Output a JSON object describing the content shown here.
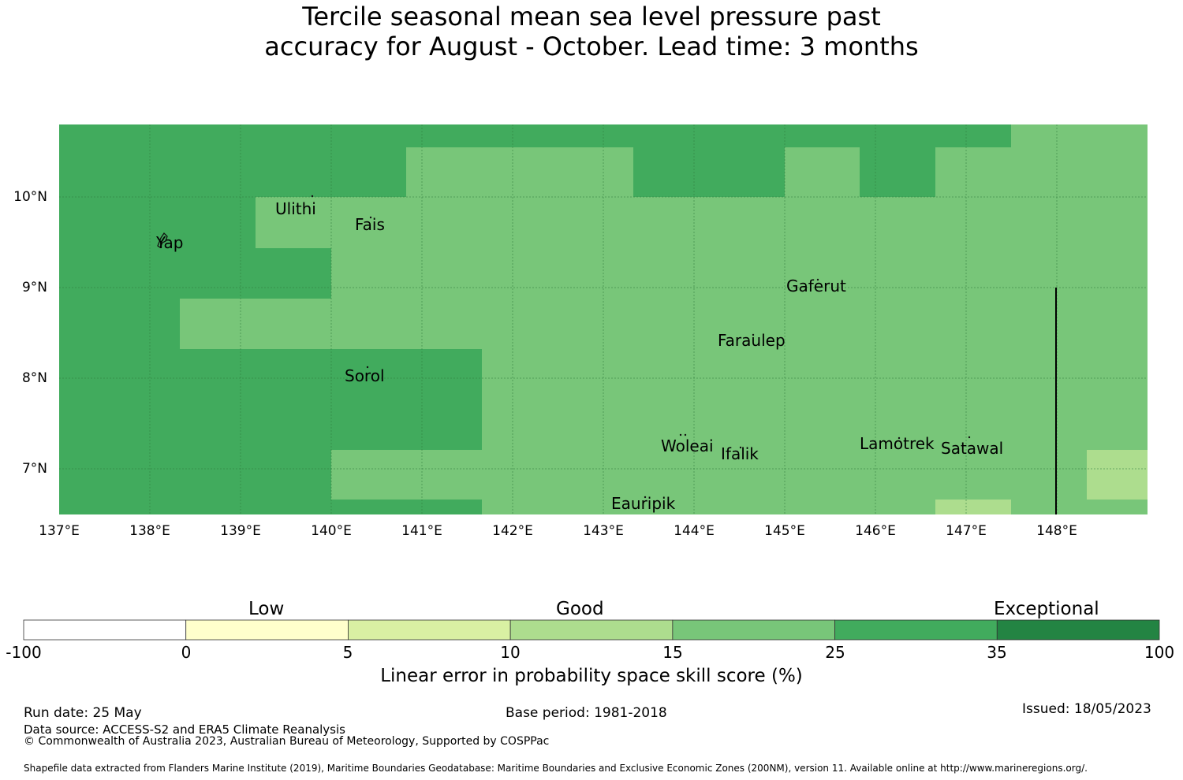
{
  "title_line1": "Tercile seasonal mean sea level pressure past",
  "title_line2": "accuracy for August - October. Lead time: 3 months",
  "map": {
    "lat_labels": [
      "10°N",
      "9°N",
      "8°N",
      "7°N"
    ],
    "lon_labels": [
      "137°E",
      "138°E",
      "139°E",
      "140°E",
      "141°E",
      "142°E",
      "143°E",
      "144°E",
      "145°E",
      "146°E",
      "147°E",
      "148°E"
    ],
    "places": [
      "Ulithi",
      "Yap",
      "Fais",
      "Gaferut",
      "Faraulep",
      "Sorol",
      "Woleai",
      "Ifalik",
      "Lamotrek",
      "Satawal",
      "Eauripik"
    ],
    "colors": {
      "c25_35": "#41ab5d",
      "c15_25": "#78c679",
      "c10_15": "#addd8e"
    }
  },
  "colorbar": {
    "categories": [
      "Low",
      "Good",
      "Exceptional"
    ],
    "ticks": [
      "-100",
      "0",
      "5",
      "10",
      "15",
      "25",
      "35",
      "100"
    ],
    "colors": [
      "#ffffff",
      "#ffffcc",
      "#d9f0a3",
      "#addd8e",
      "#78c679",
      "#41ab5d",
      "#238443"
    ],
    "label": "Linear error in probability space skill score (%)"
  },
  "footer": {
    "run_date": "Run date: 25 May",
    "base_period": "Base period: 1981-2018",
    "issued": "Issued: 18/05/2023",
    "data_source": "Data source: ACCESS-S2 and ERA5 Climate Reanalysis",
    "copyright": "© Commonwealth of Australia 2023, Australian Bureau of Meteorology, Supported by COSPPac",
    "shapefile": "Shapefile data extracted from Flanders Marine Institute (2019), Maritime Boundaries Geodatabase: Maritime Boundaries and Exclusive Economic Zones (200NM), version 11. Available online at http://www.marineregions.org/."
  }
}
